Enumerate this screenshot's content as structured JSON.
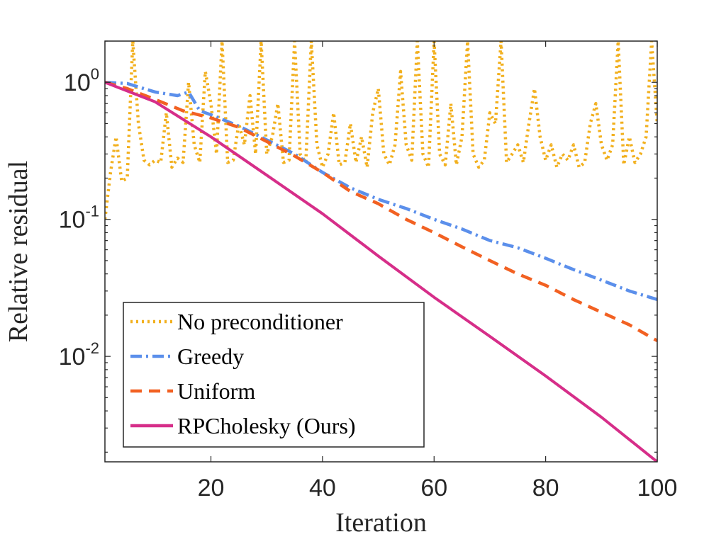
{
  "chart_data": {
    "type": "line",
    "xlabel": "Iteration",
    "ylabel": "Relative residual",
    "xlim": [
      1,
      100
    ],
    "ylim": [
      0.0017,
      2.0
    ],
    "yscale": "log",
    "x_ticks": [
      20,
      40,
      60,
      80,
      100
    ],
    "x_tick_labels": [
      "20",
      "40",
      "60",
      "80",
      "100"
    ],
    "y_ticks": [
      {
        "value": 1,
        "base": "10",
        "exp": "0"
      },
      {
        "value": 0.1,
        "base": "10",
        "exp": "-1"
      },
      {
        "value": 0.01,
        "base": "10",
        "exp": "-2"
      }
    ],
    "grid": false,
    "box": true,
    "legend_position": "bottom-left",
    "series": [
      {
        "name": "No preconditioner",
        "color": "#F2B01E",
        "style": "dotted",
        "points": [
          [
            1,
            0.1
          ],
          [
            2,
            0.22
          ],
          [
            3,
            0.4
          ],
          [
            4,
            0.19
          ],
          [
            5,
            0.2
          ],
          [
            6,
            2.0
          ],
          [
            7,
            0.5
          ],
          [
            8,
            0.27
          ],
          [
            9,
            0.25
          ],
          [
            10,
            0.27
          ],
          [
            11,
            0.26
          ],
          [
            12,
            0.6
          ],
          [
            13,
            0.24
          ],
          [
            14,
            0.28
          ],
          [
            15,
            0.26
          ],
          [
            16,
            1.0
          ],
          [
            17,
            0.35
          ],
          [
            18,
            0.26
          ],
          [
            19,
            1.2
          ],
          [
            20,
            0.7
          ],
          [
            21,
            0.3
          ],
          [
            22,
            2.0
          ],
          [
            23,
            0.26
          ],
          [
            24,
            0.27
          ],
          [
            25,
            0.5
          ],
          [
            26,
            0.35
          ],
          [
            27,
            0.8
          ],
          [
            28,
            0.3
          ],
          [
            29,
            2.0
          ],
          [
            30,
            0.3
          ],
          [
            31,
            0.4
          ],
          [
            32,
            0.7
          ],
          [
            33,
            0.26
          ],
          [
            34,
            0.27
          ],
          [
            35,
            2.0
          ],
          [
            36,
            0.3
          ],
          [
            37,
            0.26
          ],
          [
            38,
            2.0
          ],
          [
            39,
            0.35
          ],
          [
            40,
            0.24
          ],
          [
            41,
            0.3
          ],
          [
            42,
            0.6
          ],
          [
            43,
            0.25
          ],
          [
            44,
            0.26
          ],
          [
            45,
            0.5
          ],
          [
            46,
            0.26
          ],
          [
            47,
            0.4
          ],
          [
            48,
            0.24
          ],
          [
            49,
            0.6
          ],
          [
            50,
            0.9
          ],
          [
            51,
            0.3
          ],
          [
            52,
            0.25
          ],
          [
            53,
            0.35
          ],
          [
            54,
            1.2
          ],
          [
            55,
            0.35
          ],
          [
            56,
            0.27
          ],
          [
            57,
            2.0
          ],
          [
            58,
            0.3
          ],
          [
            59,
            0.24
          ],
          [
            60,
            2.0
          ],
          [
            61,
            0.3
          ],
          [
            62,
            0.25
          ],
          [
            63,
            0.7
          ],
          [
            64,
            0.25
          ],
          [
            65,
            0.4
          ],
          [
            66,
            2.0
          ],
          [
            67,
            0.3
          ],
          [
            68,
            0.24
          ],
          [
            69,
            0.27
          ],
          [
            70,
            0.6
          ],
          [
            71,
            0.5
          ],
          [
            72,
            2.0
          ],
          [
            73,
            0.26
          ],
          [
            74,
            0.3
          ],
          [
            75,
            0.35
          ],
          [
            76,
            0.26
          ],
          [
            77,
            0.5
          ],
          [
            78,
            0.9
          ],
          [
            79,
            0.4
          ],
          [
            80,
            0.27
          ],
          [
            81,
            0.35
          ],
          [
            82,
            0.24
          ],
          [
            83,
            0.3
          ],
          [
            84,
            0.27
          ],
          [
            85,
            0.35
          ],
          [
            86,
            0.24
          ],
          [
            87,
            0.26
          ],
          [
            88,
            0.5
          ],
          [
            89,
            0.7
          ],
          [
            90,
            0.35
          ],
          [
            91,
            0.27
          ],
          [
            92,
            0.35
          ],
          [
            93,
            2.0
          ],
          [
            94,
            0.25
          ],
          [
            95,
            0.4
          ],
          [
            96,
            0.26
          ],
          [
            97,
            0.3
          ],
          [
            98,
            0.4
          ],
          [
            99,
            2.0
          ],
          [
            100,
            0.5
          ]
        ]
      },
      {
        "name": "Greedy",
        "color": "#5B8FEB",
        "style": "dashdot",
        "points": [
          [
            1,
            1.0
          ],
          [
            5,
            0.98
          ],
          [
            10,
            0.85
          ],
          [
            14,
            0.8
          ],
          [
            16,
            0.85
          ],
          [
            18,
            0.62
          ],
          [
            20,
            0.58
          ],
          [
            25,
            0.48
          ],
          [
            30,
            0.38
          ],
          [
            35,
            0.3
          ],
          [
            40,
            0.22
          ],
          [
            45,
            0.17
          ],
          [
            50,
            0.14
          ],
          [
            55,
            0.12
          ],
          [
            60,
            0.1
          ],
          [
            65,
            0.085
          ],
          [
            70,
            0.07
          ],
          [
            75,
            0.062
          ],
          [
            80,
            0.052
          ],
          [
            85,
            0.043
          ],
          [
            90,
            0.036
          ],
          [
            95,
            0.03
          ],
          [
            100,
            0.026
          ]
        ]
      },
      {
        "name": "Uniform",
        "color": "#F26122",
        "style": "dashed",
        "points": [
          [
            1,
            1.0
          ],
          [
            5,
            0.9
          ],
          [
            10,
            0.75
          ],
          [
            15,
            0.62
          ],
          [
            20,
            0.55
          ],
          [
            25,
            0.47
          ],
          [
            30,
            0.37
          ],
          [
            35,
            0.29
          ],
          [
            40,
            0.22
          ],
          [
            45,
            0.16
          ],
          [
            50,
            0.13
          ],
          [
            55,
            0.1
          ],
          [
            60,
            0.08
          ],
          [
            65,
            0.063
          ],
          [
            70,
            0.05
          ],
          [
            75,
            0.04
          ],
          [
            80,
            0.033
          ],
          [
            85,
            0.026
          ],
          [
            90,
            0.021
          ],
          [
            95,
            0.017
          ],
          [
            100,
            0.013
          ]
        ]
      },
      {
        "name": "RPCholesky (Ours)",
        "color": "#D62E89",
        "style": "solid",
        "points": [
          [
            1,
            1.0
          ],
          [
            10,
            0.72
          ],
          [
            20,
            0.4
          ],
          [
            30,
            0.21
          ],
          [
            40,
            0.11
          ],
          [
            50,
            0.054
          ],
          [
            60,
            0.027
          ],
          [
            70,
            0.014
          ],
          [
            80,
            0.0072
          ],
          [
            90,
            0.0036
          ],
          [
            100,
            0.0017
          ]
        ]
      }
    ]
  }
}
